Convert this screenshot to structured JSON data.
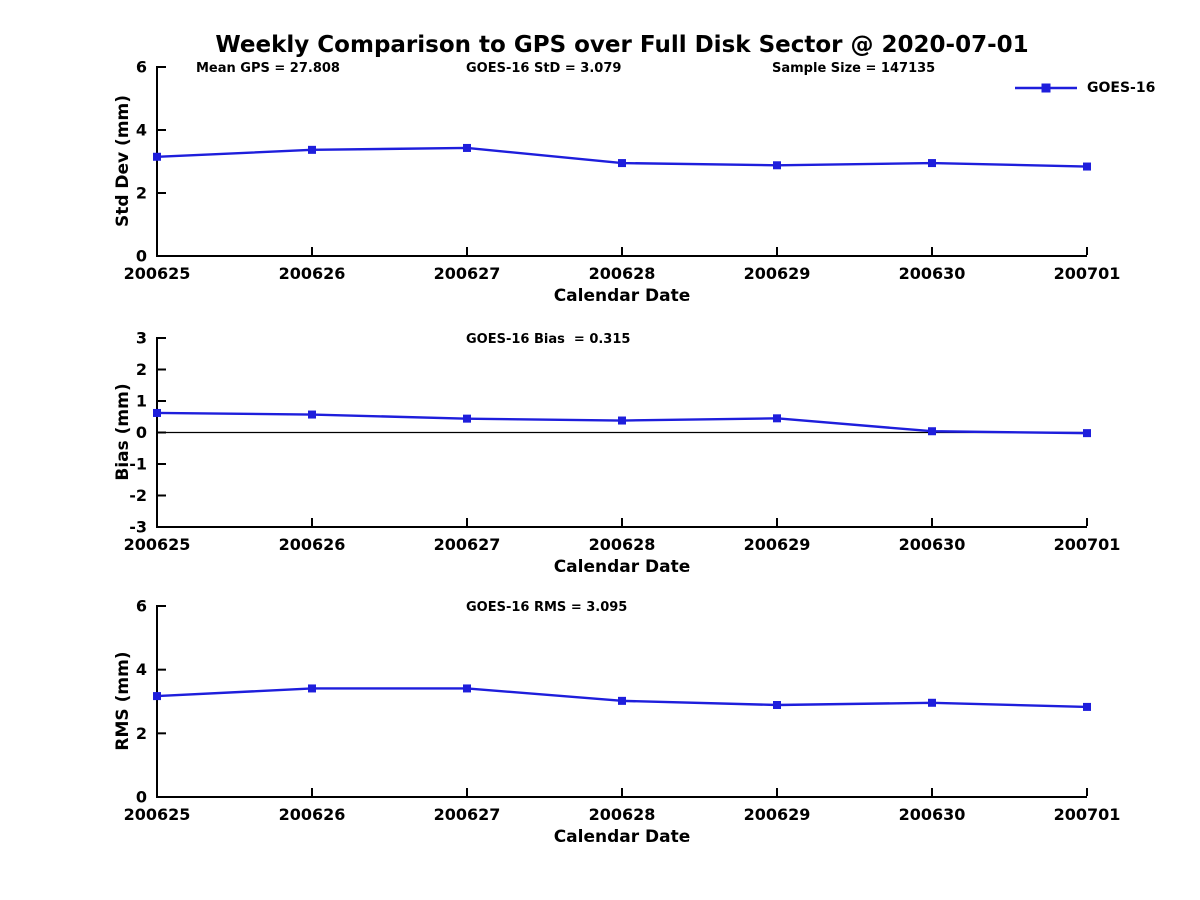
{
  "title": "Weekly Comparison to GPS over Full Disk Sector @ 2020-07-01",
  "legend": {
    "label": "GOES-16"
  },
  "colors": {
    "line": "#1e1edc",
    "axis": "#000000",
    "background": "#ffffff"
  },
  "chart_data": [
    {
      "type": "line",
      "name": "std-dev",
      "ylabel": "Std Dev (mm)",
      "xlabel": "Calendar Date",
      "ylim": [
        0,
        6
      ],
      "yticks": [
        0,
        2,
        4,
        6
      ],
      "grid": false,
      "legend_position": "top-right",
      "categories": [
        "200625",
        "200626",
        "200627",
        "200628",
        "200629",
        "200630",
        "200701"
      ],
      "series": [
        {
          "name": "GOES-16",
          "color": "#1e1edc",
          "marker": "square",
          "values": [
            3.15,
            3.37,
            3.43,
            2.95,
            2.88,
            2.95,
            2.84
          ]
        }
      ],
      "annotations": [
        {
          "text": "Mean GPS = 27.808"
        },
        {
          "text": "GOES-16 StD = 3.079"
        },
        {
          "text": "Sample Size = 147135"
        }
      ]
    },
    {
      "type": "line",
      "name": "bias",
      "ylabel": "Bias (mm)",
      "xlabel": "Calendar Date",
      "ylim": [
        -3,
        3
      ],
      "yticks": [
        -3,
        -2,
        -1,
        0,
        1,
        2,
        3
      ],
      "zero_line": true,
      "grid": false,
      "categories": [
        "200625",
        "200626",
        "200627",
        "200628",
        "200629",
        "200630",
        "200701"
      ],
      "series": [
        {
          "name": "GOES-16",
          "color": "#1e1edc",
          "marker": "square",
          "values": [
            0.62,
            0.57,
            0.44,
            0.38,
            0.45,
            0.04,
            -0.02
          ]
        }
      ],
      "annotations": [
        {
          "text": "GOES-16 Bias  = 0.315"
        }
      ]
    },
    {
      "type": "line",
      "name": "rms",
      "ylabel": "RMS (mm)",
      "xlabel": "Calendar Date",
      "ylim": [
        0,
        6
      ],
      "yticks": [
        0,
        2,
        4,
        6
      ],
      "grid": false,
      "categories": [
        "200625",
        "200626",
        "200627",
        "200628",
        "200629",
        "200630",
        "200701"
      ],
      "series": [
        {
          "name": "GOES-16",
          "color": "#1e1edc",
          "marker": "square",
          "values": [
            3.17,
            3.41,
            3.41,
            3.02,
            2.89,
            2.96,
            2.83
          ]
        }
      ],
      "annotations": [
        {
          "text": "GOES-16 RMS = 3.095"
        }
      ]
    }
  ]
}
